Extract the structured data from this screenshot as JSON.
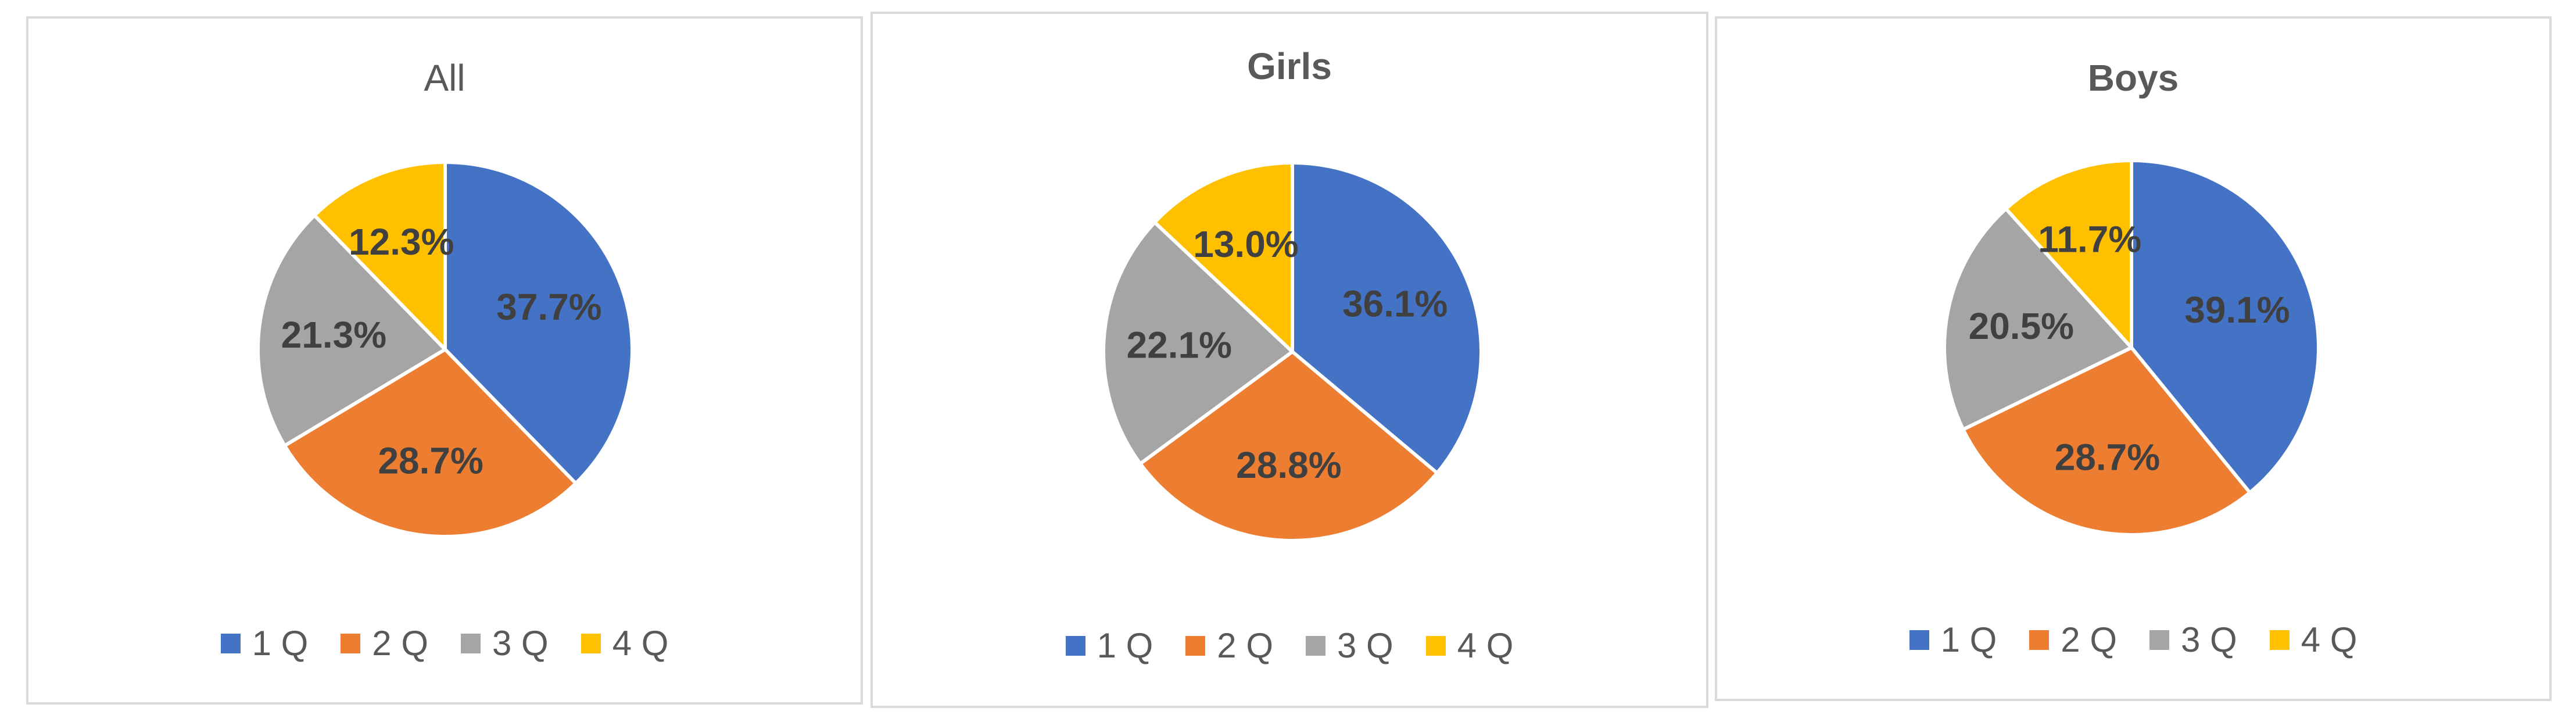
{
  "colors": {
    "1Q": "#4472c4",
    "2Q": "#ed7d31",
    "3Q": "#a5a5a5",
    "4Q": "#ffc000"
  },
  "legend": [
    "1 Q",
    "2 Q",
    "3 Q",
    "4 Q"
  ],
  "chart_data": [
    {
      "type": "pie",
      "title": "All",
      "categories": [
        "1 Q",
        "2 Q",
        "3 Q",
        "4 Q"
      ],
      "values": [
        37.7,
        28.7,
        21.3,
        12.3
      ],
      "labels": [
        "37.7%",
        "28.7%",
        "21.3%",
        "12.3%"
      ],
      "legend_position": "bottom"
    },
    {
      "type": "pie",
      "title": "Girls",
      "categories": [
        "1 Q",
        "2 Q",
        "3 Q",
        "4 Q"
      ],
      "values": [
        36.1,
        28.8,
        22.1,
        13.0
      ],
      "labels": [
        "36.1%",
        "28.8%",
        "22.1%",
        "13.0%"
      ],
      "legend_position": "bottom"
    },
    {
      "type": "pie",
      "title": "Boys",
      "categories": [
        "1 Q",
        "2 Q",
        "3 Q",
        "4 Q"
      ],
      "values": [
        39.1,
        28.7,
        20.5,
        11.7
      ],
      "labels": [
        "39.1%",
        "28.7%",
        "20.5%",
        "11.7%"
      ],
      "legend_position": "bottom"
    }
  ]
}
